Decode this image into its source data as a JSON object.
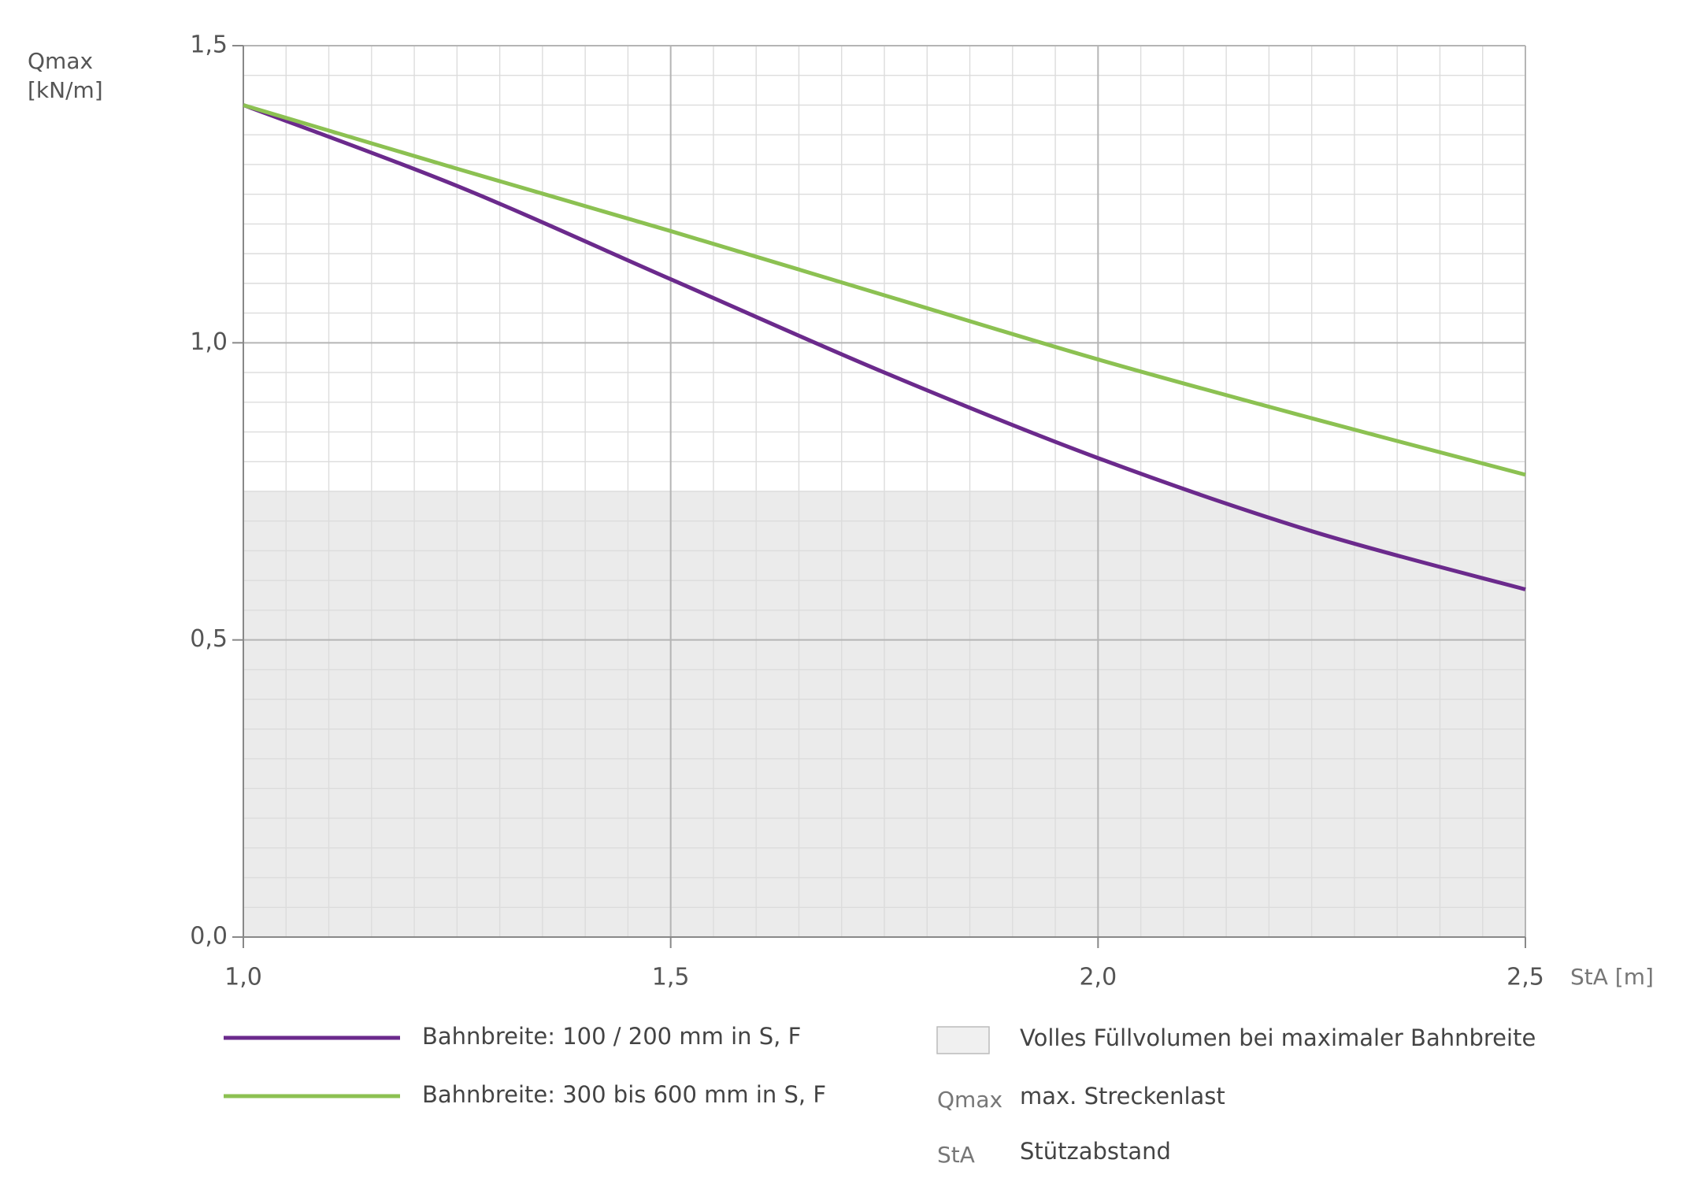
{
  "chart_data": {
    "type": "line",
    "y_label": [
      "Qmax",
      "[kN/m]"
    ],
    "x_label": "StA [m]",
    "x": [
      1.0,
      1.25,
      1.5,
      1.75,
      2.0,
      2.25,
      2.5
    ],
    "series": [
      {
        "name": "Bahnbreite: 100 / 200 mm in S, F",
        "color": "#6b2a8c",
        "values": [
          1.4,
          1.264,
          1.107,
          0.95,
          0.806,
          0.683,
          0.585
        ]
      },
      {
        "name": "Bahnbreite: 300 bis 600  mm in S, F",
        "color": "#8cc152",
        "values": [
          1.4,
          1.293,
          1.188,
          1.08,
          0.972,
          0.873,
          0.778
        ]
      }
    ],
    "xlim": [
      1.0,
      2.5
    ],
    "ylim": [
      0,
      1.5
    ],
    "xticks": [
      {
        "value": 1.0,
        "label": "1,0"
      },
      {
        "value": 1.5,
        "label": "1,5"
      },
      {
        "value": 2.0,
        "label": "2,0"
      },
      {
        "value": 2.5,
        "label": "2,5"
      }
    ],
    "yticks": [
      {
        "value": 0,
        "label": "0,0"
      },
      {
        "value": 0.5,
        "label": "0,5"
      },
      {
        "value": 1.0,
        "label": "1,0"
      },
      {
        "value": 1.5,
        "label": "1,5"
      }
    ],
    "grid": true,
    "region": {
      "name": "Volles Füllvolumen bei maximaler Bahnbreite",
      "from": 0,
      "to": 0.75,
      "color": "#ebebeb"
    },
    "abbreviations": [
      {
        "term": "Qmax",
        "text": "max. Streckenlast"
      },
      {
        "term": "StA",
        "text": "Stützabstand"
      }
    ]
  }
}
